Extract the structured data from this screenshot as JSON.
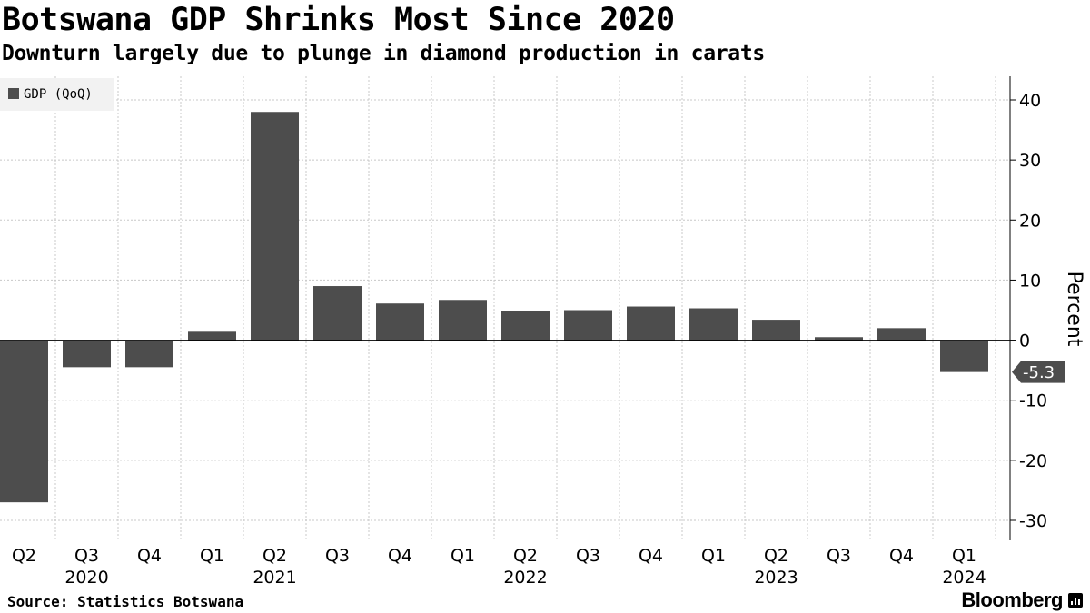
{
  "chart_data": {
    "type": "bar",
    "title": "Botswana GDP Shrinks Most Since 2020",
    "subtitle": "Downturn largely due to plunge in diamond production in carats",
    "categories": [
      "Q2",
      "Q3",
      "Q4",
      "Q1",
      "Q2",
      "Q3",
      "Q4",
      "Q1",
      "Q2",
      "Q3",
      "Q4",
      "Q1",
      "Q2",
      "Q3",
      "Q4",
      "Q1"
    ],
    "year_labels": [
      {
        "index": 1,
        "label": "2020"
      },
      {
        "index": 4,
        "label": "2021"
      },
      {
        "index": 8,
        "label": "2022"
      },
      {
        "index": 12,
        "label": "2023"
      },
      {
        "index": 15,
        "label": "2024"
      }
    ],
    "series": [
      {
        "name": "GDP (QoQ)",
        "values": [
          -27.0,
          -4.5,
          -4.5,
          1.4,
          38.0,
          9.0,
          6.1,
          6.7,
          4.9,
          5.0,
          5.6,
          5.3,
          3.4,
          0.5,
          2.0,
          -5.3
        ]
      }
    ],
    "ylabel": "Percent",
    "ylim": [
      -33,
      44
    ],
    "yticks": [
      -30,
      -20,
      -10,
      0,
      10,
      20,
      30,
      40
    ],
    "ytick_labels": [
      "-30",
      "-20",
      "-10",
      "0",
      "10",
      "20",
      "30",
      "40"
    ],
    "callout": {
      "index": 15,
      "label": "-5.3"
    },
    "legend_position": "top-left",
    "grid": true,
    "bar_color": "#4d4d4d"
  },
  "footer": {
    "source": "Source: Statistics Botswana",
    "brand": "Bloomberg"
  }
}
